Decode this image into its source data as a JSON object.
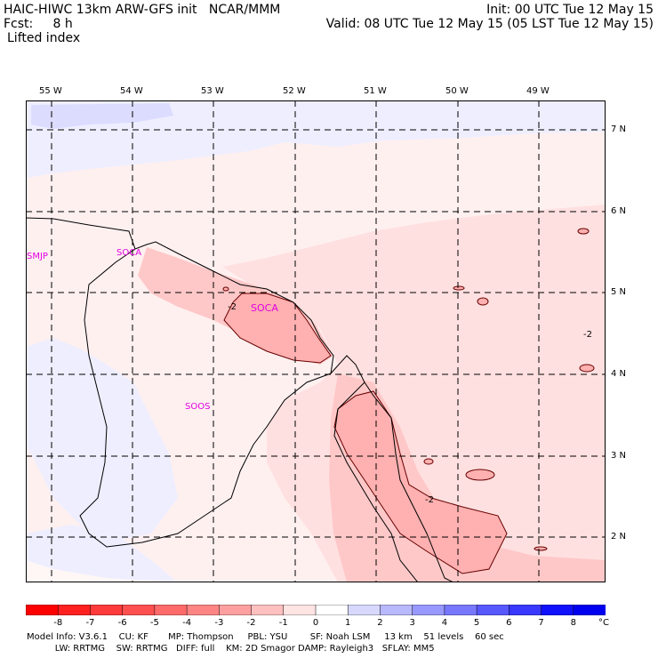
{
  "header": {
    "line1_left": "HAIC-HIWC 13km ARW-GFS init   NCAR/MMM",
    "line2_left": "Fcst:     8 h",
    "init": "Init: 00 UTC Tue 12 May 15",
    "valid": "Valid: 08 UTC Tue 12 May 15 (05 LST Tue 12 May 15)",
    "field": "Lifted index"
  },
  "lon_labels": [
    "55 W",
    "54 W",
    "53 W",
    "52 W",
    "51 W",
    "50 W",
    "49 W"
  ],
  "lat_labels": [
    "7 N",
    "6 N",
    "5 N",
    "4 N",
    "3 N",
    "2 N"
  ],
  "stations": [
    "SMJP",
    "SOCA",
    "SOCA",
    "SOOS"
  ],
  "contour_labels": [
    "-2",
    "-2",
    "-2"
  ],
  "colorbar": {
    "labels": [
      "-8",
      "-7",
      "-6",
      "-5",
      "-4",
      "-3",
      "-2",
      "-1",
      "0",
      "1",
      "2",
      "3",
      "4",
      "5",
      "6",
      "7",
      "8"
    ],
    "unit": "°C",
    "colors": [
      "#ff0000",
      "#ff2020",
      "#ff3a3a",
      "#ff5050",
      "#ff6a6a",
      "#ff8484",
      "#ffa0a0",
      "#ffc0c0",
      "#ffe4e4",
      "#ffffff",
      "#d8d8ff",
      "#b8b8ff",
      "#9898ff",
      "#7878ff",
      "#5858ff",
      "#3838ff",
      "#1010ff",
      "#0000f0"
    ]
  },
  "footer": {
    "line1": "Model Info: V3.6.1    CU: KF       MP: Thompson     PBL: YSU        SF: Noah LSM     13 km    51 levels    60 sec",
    "line2": "          LW: RRTMG    SW: RRTMG   DIFF: full    KM: 2D Smagor DAMP: Rayleigh3   SFLAY: MM5"
  },
  "map_colors": {
    "lightest_red": "#fff0f0",
    "light_red": "#ffe0e0",
    "medium_red": "#ffc8c8",
    "darker_red": "#ffb0b0",
    "light_blue": "#eeeeff",
    "medium_blue": "#d8d8ff"
  }
}
